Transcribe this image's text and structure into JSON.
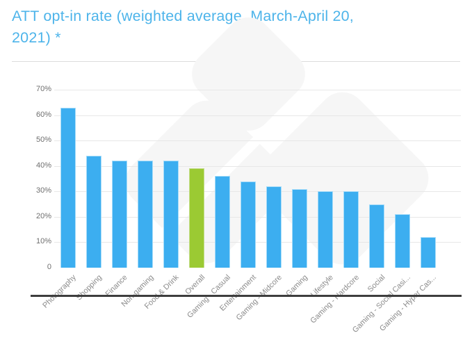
{
  "page": {
    "title_line1": "ATT opt-in rate (weighted average, March-April 20,",
    "title_line2": "2021) *"
  },
  "colors": {
    "title_text": "#4db4ea",
    "bar": "#3caef0",
    "bar_highlight": "#9bca33",
    "gridline": "#e7e7e7",
    "axis_line": "#3d3d3d",
    "tick_text": "#6e6e6e",
    "watermark": "#f6f6f6"
  },
  "chart_data": {
    "type": "bar",
    "title": "ATT opt-in rate (weighted average, March-April 20, 2021) *",
    "categories": [
      "Photography",
      "Shopping",
      "Finance",
      "Non-gaming",
      "Food & Drink",
      "Overall",
      "Gaming - Casual",
      "Entertainment",
      "Gaming - Midcore",
      "Gaming",
      "Lifestyle",
      "Gaming - Hardcore",
      "Social",
      "Gaming - Social Casi...",
      "Gaming - Hyper Cas..."
    ],
    "values": [
      63,
      44,
      42,
      42,
      42,
      39,
      36,
      34,
      32,
      31,
      30,
      30,
      25,
      21,
      12
    ],
    "unit": "%",
    "highlight_index": 5,
    "highlight_category": "Overall",
    "ylim": [
      0,
      70
    ],
    "ytick_labels": [
      "70%",
      "60%",
      "50%",
      "40%",
      "30%",
      "20%",
      "10%",
      "0"
    ],
    "grid": true,
    "legend": false,
    "xlabel": "",
    "ylabel": ""
  }
}
